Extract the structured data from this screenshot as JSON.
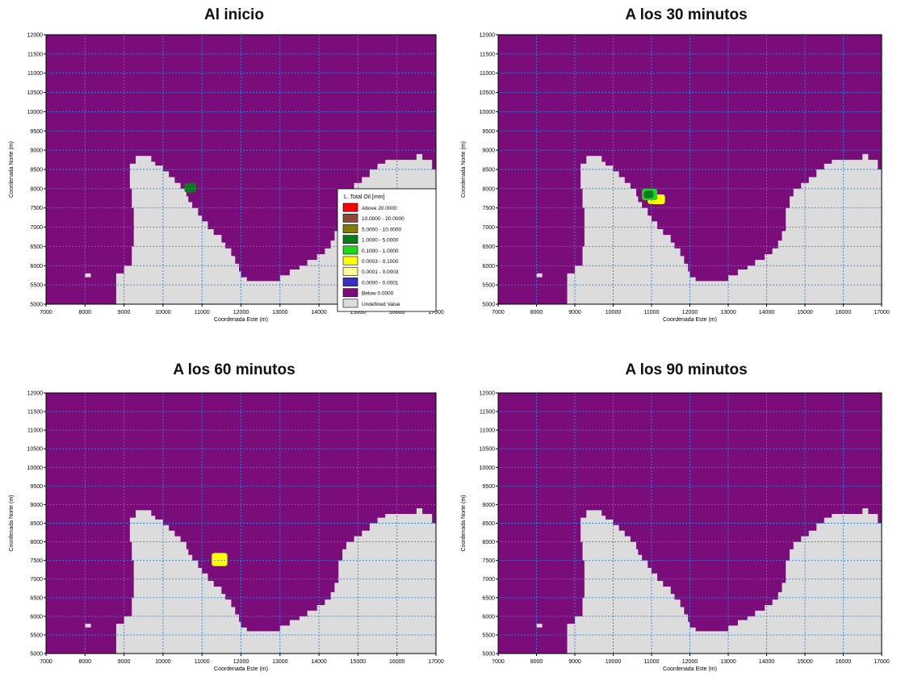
{
  "colors": {
    "water": "#7a0d7a",
    "land": "#dcdcdc",
    "grid": "#2e86e0",
    "above": "#ff0000",
    "band_10_20": "#8b4a3c",
    "band_5_10": "#857a00",
    "band_1_5": "#0b7a1d",
    "band_01_1": "#1ed81e",
    "band_0003_01": "#ffff00",
    "band_00001_00003": "#ffff99",
    "band_0_00001": "#3a2ec8",
    "below": "#7a0d7a",
    "undefined": "#dcdcdc"
  },
  "chart_data": [
    {
      "type": "heatmap",
      "title": "Al inicio",
      "xlabel": "Coordenada Este (m)",
      "ylabel": "Coordenada Norte (m)",
      "xlim": [
        7000,
        17000
      ],
      "ylim": [
        5000,
        12000
      ],
      "xticks": [
        "7000",
        "8000",
        "9000",
        "10000",
        "11000",
        "12000",
        "13000",
        "14000",
        "15000",
        "16000",
        "17000"
      ],
      "yticks": [
        "5000",
        "5500",
        "6000",
        "6500",
        "7000",
        "7500",
        "8000",
        "8500",
        "9000",
        "9500",
        "10000",
        "10500",
        "11000",
        "11500",
        "12000"
      ],
      "grid": true,
      "spill_patches": [
        {
          "x": [
            10550,
            10850
          ],
          "y": [
            7900,
            8150
          ],
          "category": "1.0000 - 5.0000"
        }
      ],
      "legend": {
        "title": "L. Total Oil [mm]",
        "placement": "right",
        "entries": [
          {
            "color_key": "above",
            "label": "Above 20.0000"
          },
          {
            "color_key": "band_10_20",
            "label": "10.0000 - 20.0000"
          },
          {
            "color_key": "band_5_10",
            "label": "5.0000 - 10.0000"
          },
          {
            "color_key": "band_1_5",
            "label": "1.0000 - 5.0000"
          },
          {
            "color_key": "band_01_1",
            "label": "0.1000 - 1.0000"
          },
          {
            "color_key": "band_0003_01",
            "label": "0.0003 - 0.1000"
          },
          {
            "color_key": "band_00001_00003",
            "label": "0.0001 - 0.0003"
          },
          {
            "color_key": "band_0_00001",
            "label": "0.0000 - 0.0001"
          },
          {
            "color_key": "below",
            "label": "Below 0.0000"
          },
          {
            "color_key": "undefined",
            "label": "Undefined Value"
          }
        ]
      }
    },
    {
      "type": "heatmap",
      "title": "A los 30 minutos",
      "xlabel": "Coordenada Este (m)",
      "ylabel": "Coordenada Norte (m)",
      "xlim": [
        7000,
        17000
      ],
      "ylim": [
        5000,
        12000
      ],
      "xticks": [
        "7000",
        "8000",
        "9000",
        "10000",
        "11000",
        "12000",
        "13000",
        "14000",
        "15000",
        "16000",
        "17000"
      ],
      "yticks": [
        "5000",
        "5500",
        "6000",
        "6500",
        "7000",
        "7500",
        "8000",
        "8500",
        "9000",
        "9500",
        "10000",
        "10500",
        "11000",
        "11500",
        "12000"
      ],
      "grid": true,
      "spill_patches": [
        {
          "x": [
            10900,
            11350
          ],
          "y": [
            7600,
            7850
          ],
          "category": "0.0003 - 0.1000"
        },
        {
          "x": [
            10750,
            11150
          ],
          "y": [
            7700,
            8000
          ],
          "category": "0.1000 - 1.0000"
        },
        {
          "x": [
            10800,
            11050
          ],
          "y": [
            7750,
            7950
          ],
          "category": "1.0000 - 5.0000"
        }
      ]
    },
    {
      "type": "heatmap",
      "title": "A los 60 minutos",
      "xlabel": "Coordenada Este (m)",
      "ylabel": "Coordenada Norte (m)",
      "xlim": [
        7000,
        17000
      ],
      "ylim": [
        5000,
        12000
      ],
      "xticks": [
        "7000",
        "8000",
        "9000",
        "10000",
        "11000",
        "12000",
        "13000",
        "14000",
        "15000",
        "16000",
        "17000"
      ],
      "yticks": [
        "5000",
        "5500",
        "6000",
        "6500",
        "7000",
        "7500",
        "8000",
        "8500",
        "9000",
        "9500",
        "10000",
        "10500",
        "11000",
        "11500",
        "12000"
      ],
      "grid": true,
      "spill_patches": [
        {
          "x": [
            11250,
            11650
          ],
          "y": [
            7350,
            7700
          ],
          "category": "0.0003 - 0.1000"
        }
      ]
    },
    {
      "type": "heatmap",
      "title": "A los 90 minutos",
      "xlabel": "Coordenada Este (m)",
      "ylabel": "Coordenada Norte (m)",
      "xlim": [
        7000,
        17000
      ],
      "ylim": [
        5000,
        12000
      ],
      "xticks": [
        "7000",
        "8000",
        "9000",
        "10000",
        "11000",
        "12000",
        "13000",
        "14000",
        "15000",
        "16000",
        "17000"
      ],
      "yticks": [
        "5000",
        "5500",
        "6000",
        "6500",
        "7000",
        "7500",
        "8000",
        "8500",
        "9000",
        "9500",
        "10000",
        "10500",
        "11000",
        "11500",
        "12000"
      ],
      "grid": true,
      "spill_patches": []
    }
  ]
}
